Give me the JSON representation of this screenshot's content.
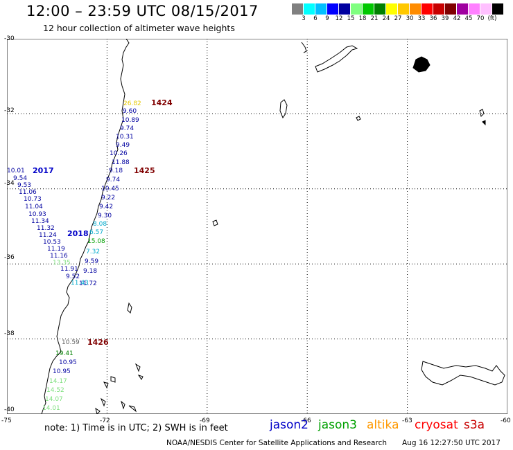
{
  "header": {
    "title": "12:00 – 23:59 UTC 08/15/2017",
    "subtitle": "12 hour collection of altimeter wave heights"
  },
  "scale": {
    "colors": [
      "#808080",
      "#00ffff",
      "#00bfff",
      "#0000ff",
      "#0000a0",
      "#80ff80",
      "#00c800",
      "#008000",
      "#ffff00",
      "#ffc800",
      "#ff8c00",
      "#ff0000",
      "#c80000",
      "#800000",
      "#a000a0",
      "#ff80ff",
      "#ffc0ff",
      "#000000"
    ],
    "labels": [
      "3",
      "6",
      "9",
      "12",
      "15",
      "18",
      "21",
      "24",
      "27",
      "30",
      "33",
      "36",
      "39",
      "42",
      "45",
      "70",
      "(ft)"
    ]
  },
  "axes": {
    "lat_labels": [
      "-30",
      "-32",
      "-34",
      "-36",
      "-38",
      "-40"
    ],
    "lon_labels": [
      "-75",
      "-72",
      "-69",
      "-66",
      "-63",
      "-60"
    ]
  },
  "map": {
    "lon_range": [
      -75,
      -60
    ],
    "lat_range": [
      -40,
      -30
    ],
    "coastline_color": "#000000"
  },
  "tracks": [
    {
      "name": "1424",
      "color": "#800000"
    },
    {
      "name": "1425",
      "color": "#800000"
    },
    {
      "name": "2017",
      "color": "#0000c8"
    },
    {
      "name": "2018",
      "color": "#0000c8"
    },
    {
      "name": "1426",
      "color": "#800000"
    }
  ],
  "readings": [
    {
      "text": "26.82",
      "color": "#e6c800"
    },
    {
      "text": "9.60",
      "color": "#0000a0"
    },
    {
      "text": "10.89",
      "color": "#0000a0"
    },
    {
      "text": "9.74",
      "color": "#0000a0"
    },
    {
      "text": "10.31",
      "color": "#0000a0"
    },
    {
      "text": "9.49",
      "color": "#0000a0"
    },
    {
      "text": "10.26",
      "color": "#0000a0"
    },
    {
      "text": "11.88",
      "color": "#0000a0"
    },
    {
      "text": "9.18",
      "color": "#0000a0"
    },
    {
      "text": "9.74",
      "color": "#0000a0"
    },
    {
      "text": "10.45",
      "color": "#0000a0"
    },
    {
      "text": "9.22",
      "color": "#0000a0"
    },
    {
      "text": "9.42",
      "color": "#0000a0"
    },
    {
      "text": "9.30",
      "color": "#0000a0"
    },
    {
      "text": "8.08",
      "color": "#00aacc"
    },
    {
      "text": "6.57",
      "color": "#00aacc"
    },
    {
      "text": "15.08",
      "color": "#00a000"
    },
    {
      "text": "7.32",
      "color": "#00aacc"
    },
    {
      "text": "9.59",
      "color": "#0000a0"
    },
    {
      "text": "9.18",
      "color": "#0000a0"
    },
    {
      "text": "11.72",
      "color": "#0000a0"
    },
    {
      "text": "10.01",
      "color": "#0000a0"
    },
    {
      "text": "9.54",
      "color": "#0000a0"
    },
    {
      "text": "9.53",
      "color": "#0000a0"
    },
    {
      "text": "11.06",
      "color": "#0000a0"
    },
    {
      "text": "10.73",
      "color": "#0000a0"
    },
    {
      "text": "11.04",
      "color": "#0000a0"
    },
    {
      "text": "10.93",
      "color": "#0000a0"
    },
    {
      "text": "11.34",
      "color": "#0000a0"
    },
    {
      "text": "11.32",
      "color": "#0000a0"
    },
    {
      "text": "11.24",
      "color": "#0000a0"
    },
    {
      "text": "10.53",
      "color": "#0000a0"
    },
    {
      "text": "11.19",
      "color": "#0000a0"
    },
    {
      "text": "11.16",
      "color": "#0000a0"
    },
    {
      "text": "13.35",
      "color": "#80e080"
    },
    {
      "text": "11.91",
      "color": "#0000a0"
    },
    {
      "text": "9.52",
      "color": "#0000a0"
    },
    {
      "text": "11.43",
      "color": "#00aacc"
    },
    {
      "text": "10.59",
      "color": "#606060"
    },
    {
      "text": "19.41",
      "color": "#008000"
    },
    {
      "text": "10.95",
      "color": "#0000a0"
    },
    {
      "text": "10.95",
      "color": "#0000a0"
    },
    {
      "text": "14.17",
      "color": "#80e080"
    },
    {
      "text": "14.52",
      "color": "#80e080"
    },
    {
      "text": "14.07",
      "color": "#80e080"
    },
    {
      "text": "14.01",
      "color": "#80e080"
    }
  ],
  "footer": {
    "note": "note: 1) Time is in UTC; 2) SWH is in feet",
    "missions": [
      {
        "name": "jason2",
        "color": "#0000c8"
      },
      {
        "name": "jason3",
        "color": "#00a000"
      },
      {
        "name": "altika",
        "color": "#ff9900"
      },
      {
        "name": "cryosat",
        "color": "#ff0000"
      },
      {
        "name": "s3a",
        "color": "#c80000"
      }
    ],
    "credit": "NOAA/NESDIS Center for Satellite Applications and Research",
    "timestamp": "Aug 16 12:27:50 UTC 2017"
  }
}
